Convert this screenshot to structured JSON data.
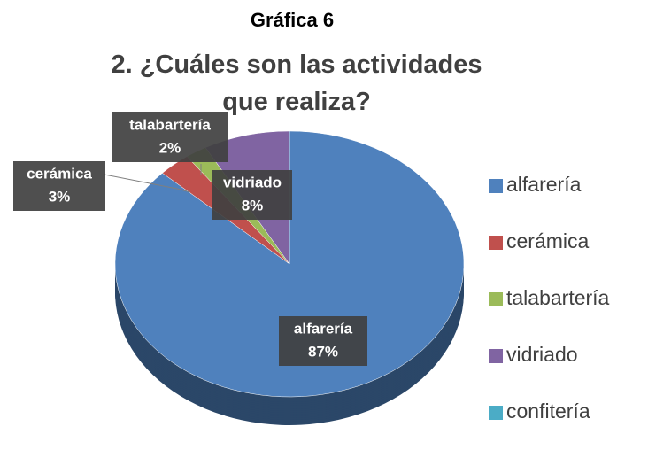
{
  "chart_data": {
    "type": "pie",
    "title": "Gráfica 6",
    "subtitle": "2. ¿Cuáles son las actividades que realiza?",
    "categories": [
      "alfarería",
      "cerámica",
      "talabartería",
      "vidriado",
      "confitería"
    ],
    "values": [
      87,
      3,
      2,
      8,
      0
    ],
    "value_labels": [
      "87%",
      "3%",
      "2%",
      "8%",
      null
    ],
    "colors": [
      "#4f81bd",
      "#c0504d",
      "#9bbb59",
      "#8064a2",
      "#4bacc6"
    ],
    "legend": "right"
  }
}
